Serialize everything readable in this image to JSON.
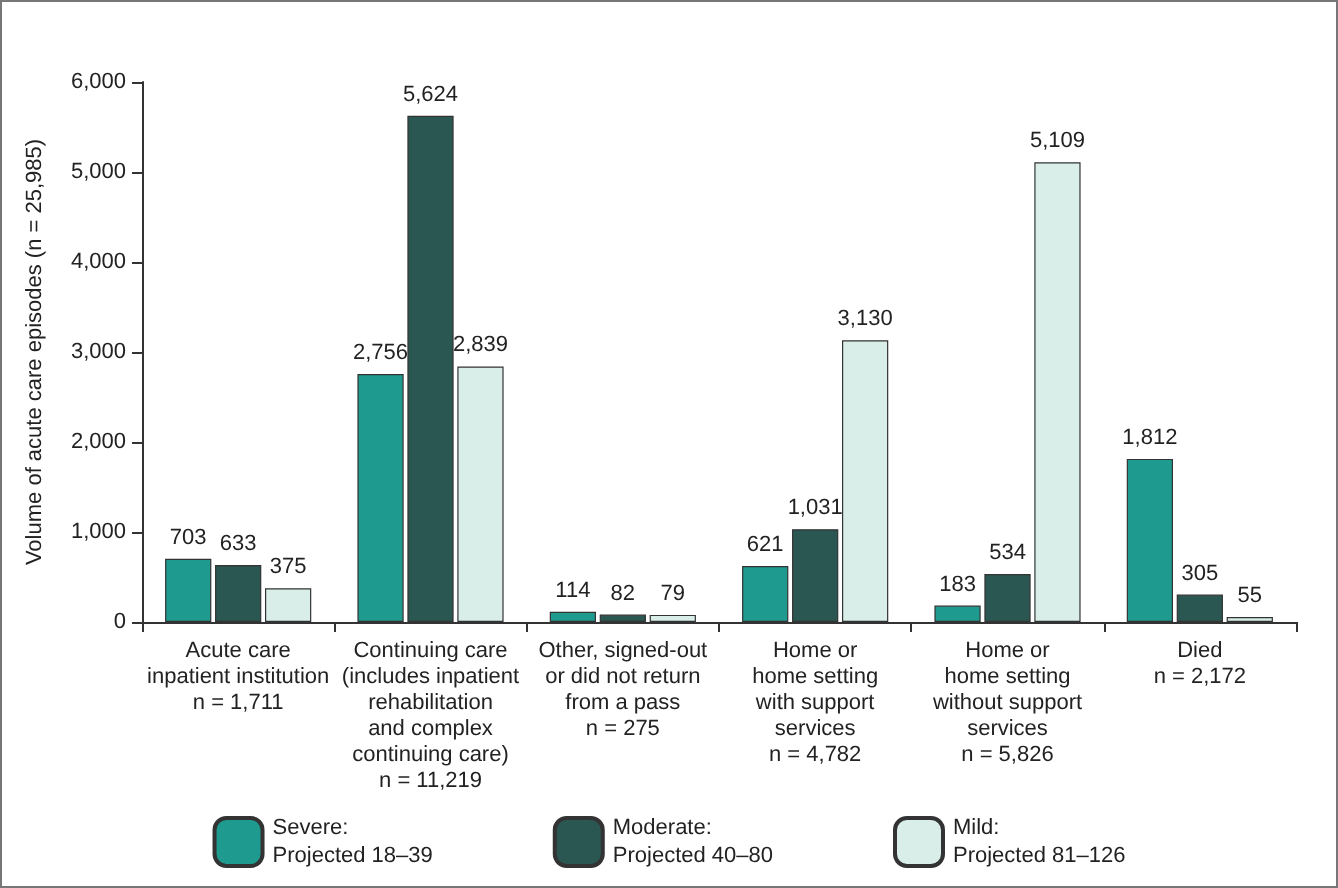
{
  "chart_data": {
    "type": "bar",
    "ylabel": "Volume of acute care episodes (n = 25,985)",
    "categories": [
      "Acute care\ninpatient institution\nn = 1,711",
      "Continuing care\n(includes inpatient\nrehabilitation\nand complex\ncontinuing care)\nn = 11,219",
      "Other, signed-out\nor did not return\nfrom a pass\nn = 275",
      "Home or\nhome setting\nwith support\nservices\nn = 4,782",
      "Home or\nhome setting\nwithout support\nservices\nn = 5,826",
      "Died\nn = 2,172"
    ],
    "series": [
      {
        "name": "Severe:\nProjected 18–39",
        "color": "#1e9a8e",
        "values": [
          703,
          2756,
          114,
          621,
          183,
          1812
        ],
        "value_labels": [
          "703",
          "2,756",
          "114",
          "621",
          "183",
          "1,812"
        ]
      },
      {
        "name": "Moderate:\nProjected 40–80",
        "color": "#2b5753",
        "values": [
          633,
          5624,
          82,
          1031,
          534,
          305
        ],
        "value_labels": [
          "633",
          "5,624",
          "82",
          "1,031",
          "534",
          "305"
        ]
      },
      {
        "name": "Mild:\nProjected 81–126",
        "color": "#d9eee9",
        "values": [
          375,
          2839,
          79,
          3130,
          5109,
          55
        ],
        "value_labels": [
          "375",
          "2,839",
          "79",
          "3,130",
          "5,109",
          "55"
        ]
      }
    ],
    "ylim": [
      0,
      6000
    ],
    "yticks": [
      0,
      {
        "value": 1000,
        "label": "1,000"
      },
      {
        "value": 2000,
        "label": "2,000"
      },
      {
        "value": 3000,
        "label": "3,000"
      },
      {
        "value": 4000,
        "label": "4,000"
      },
      {
        "value": 5000,
        "label": "5,000"
      },
      {
        "value": 6000,
        "label": "6,000"
      }
    ],
    "grid": false,
    "legend": "bottom"
  }
}
